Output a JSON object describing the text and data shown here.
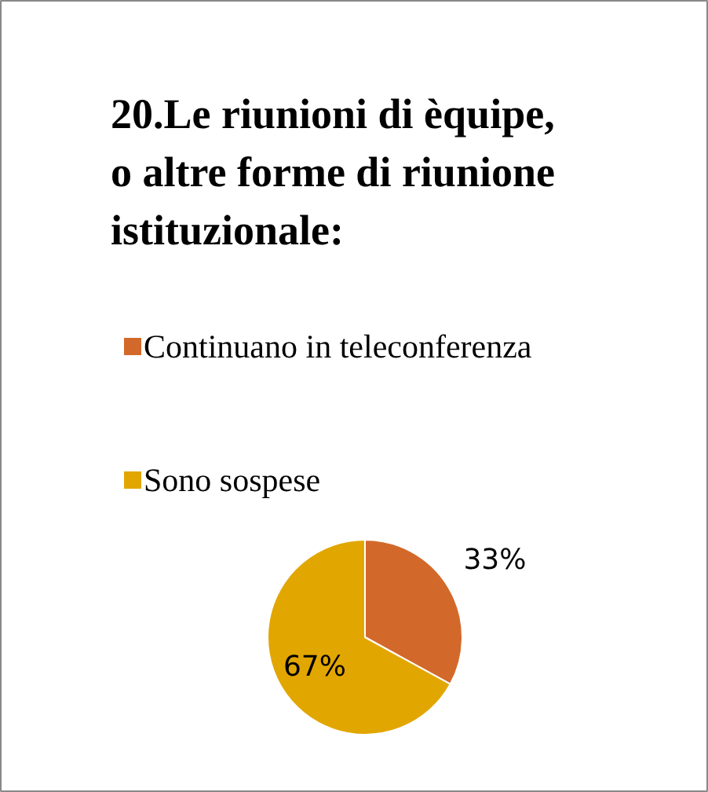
{
  "chart_data": {
    "type": "pie",
    "title": "20.Le riunioni di èquipe, o altre forme di riunione istituzionale:",
    "categories": [
      "Continuano in teleconferenza",
      "Sono sospese"
    ],
    "values": [
      33,
      67
    ],
    "colors": [
      "#d2692a",
      "#e2a600"
    ],
    "value_labels": [
      "33%",
      "67%"
    ],
    "legend": "top"
  }
}
